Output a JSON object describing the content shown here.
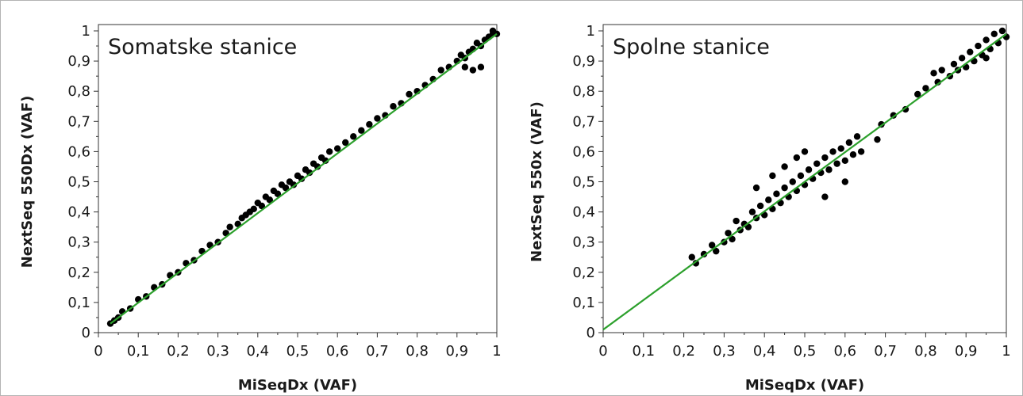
{
  "chart_data": [
    {
      "type": "scatter",
      "title": "Somatske stanice",
      "xlabel": "MiSeqDx (VAF)",
      "ylabel": "NextSeq 550Dx (VAF)",
      "xlim": [
        0,
        1
      ],
      "ylim": [
        0,
        1
      ],
      "x_ticks": [
        "0",
        "0,1",
        "0,2",
        "0,3",
        "0,4",
        "0,5",
        "0,6",
        "0,7",
        "0,8",
        "0,9",
        "1"
      ],
      "y_ticks": [
        "0",
        "0,1",
        "0,2",
        "0,3",
        "0,4",
        "0,5",
        "0,6",
        "0,7",
        "0,8",
        "0,9",
        "1"
      ],
      "grid": false,
      "point_color": "#000000",
      "line_color": "#2ca02c",
      "fit_line": {
        "x": [
          0.03,
          1.0
        ],
        "y": [
          0.03,
          0.99
        ]
      },
      "points": [
        [
          0.03,
          0.03
        ],
        [
          0.04,
          0.04
        ],
        [
          0.05,
          0.05
        ],
        [
          0.06,
          0.07
        ],
        [
          0.08,
          0.08
        ],
        [
          0.1,
          0.11
        ],
        [
          0.12,
          0.12
        ],
        [
          0.14,
          0.15
        ],
        [
          0.16,
          0.16
        ],
        [
          0.18,
          0.19
        ],
        [
          0.2,
          0.2
        ],
        [
          0.22,
          0.23
        ],
        [
          0.24,
          0.24
        ],
        [
          0.26,
          0.27
        ],
        [
          0.28,
          0.29
        ],
        [
          0.3,
          0.3
        ],
        [
          0.32,
          0.33
        ],
        [
          0.33,
          0.35
        ],
        [
          0.35,
          0.36
        ],
        [
          0.36,
          0.38
        ],
        [
          0.37,
          0.39
        ],
        [
          0.38,
          0.4
        ],
        [
          0.39,
          0.41
        ],
        [
          0.4,
          0.43
        ],
        [
          0.41,
          0.42
        ],
        [
          0.42,
          0.45
        ],
        [
          0.43,
          0.44
        ],
        [
          0.44,
          0.47
        ],
        [
          0.45,
          0.46
        ],
        [
          0.46,
          0.49
        ],
        [
          0.47,
          0.48
        ],
        [
          0.48,
          0.5
        ],
        [
          0.49,
          0.49
        ],
        [
          0.5,
          0.52
        ],
        [
          0.51,
          0.51
        ],
        [
          0.52,
          0.54
        ],
        [
          0.53,
          0.53
        ],
        [
          0.54,
          0.56
        ],
        [
          0.55,
          0.55
        ],
        [
          0.56,
          0.58
        ],
        [
          0.57,
          0.57
        ],
        [
          0.58,
          0.6
        ],
        [
          0.6,
          0.61
        ],
        [
          0.62,
          0.63
        ],
        [
          0.64,
          0.65
        ],
        [
          0.66,
          0.67
        ],
        [
          0.68,
          0.69
        ],
        [
          0.7,
          0.71
        ],
        [
          0.72,
          0.72
        ],
        [
          0.74,
          0.75
        ],
        [
          0.76,
          0.76
        ],
        [
          0.78,
          0.79
        ],
        [
          0.8,
          0.8
        ],
        [
          0.82,
          0.82
        ],
        [
          0.84,
          0.84
        ],
        [
          0.86,
          0.87
        ],
        [
          0.88,
          0.88
        ],
        [
          0.9,
          0.9
        ],
        [
          0.91,
          0.92
        ],
        [
          0.92,
          0.91
        ],
        [
          0.93,
          0.93
        ],
        [
          0.94,
          0.94
        ],
        [
          0.95,
          0.96
        ],
        [
          0.96,
          0.95
        ],
        [
          0.97,
          0.97
        ],
        [
          0.98,
          0.98
        ],
        [
          0.99,
          0.99
        ],
        [
          0.99,
          1.0
        ],
        [
          1.0,
          0.99
        ],
        [
          0.96,
          0.88
        ],
        [
          0.94,
          0.87
        ],
        [
          0.92,
          0.88
        ]
      ]
    },
    {
      "type": "scatter",
      "title": "Spolne stanice",
      "xlabel": "MiSeqDx (VAF)",
      "ylabel": "NextSeq 550x (VAF)",
      "xlim": [
        0,
        1
      ],
      "ylim": [
        0,
        1
      ],
      "x_ticks": [
        "0",
        "0,1",
        "0,2",
        "0,3",
        "0,4",
        "0,5",
        "0,6",
        "0,7",
        "0,8",
        "0,9",
        "1"
      ],
      "y_ticks": [
        "0",
        "0,1",
        "0,2",
        "0,3",
        "0,4",
        "0,5",
        "0,6",
        "0,7",
        "0,8",
        "0,9",
        "1"
      ],
      "grid": false,
      "point_color": "#000000",
      "line_color": "#2ca02c",
      "fit_line": {
        "x": [
          0.0,
          1.0
        ],
        "y": [
          0.01,
          0.99
        ]
      },
      "points": [
        [
          0.22,
          0.25
        ],
        [
          0.23,
          0.23
        ],
        [
          0.25,
          0.26
        ],
        [
          0.27,
          0.29
        ],
        [
          0.28,
          0.27
        ],
        [
          0.3,
          0.3
        ],
        [
          0.31,
          0.33
        ],
        [
          0.32,
          0.31
        ],
        [
          0.33,
          0.37
        ],
        [
          0.34,
          0.34
        ],
        [
          0.35,
          0.36
        ],
        [
          0.36,
          0.35
        ],
        [
          0.37,
          0.4
        ],
        [
          0.38,
          0.38
        ],
        [
          0.39,
          0.42
        ],
        [
          0.4,
          0.39
        ],
        [
          0.41,
          0.44
        ],
        [
          0.42,
          0.41
        ],
        [
          0.43,
          0.46
        ],
        [
          0.44,
          0.43
        ],
        [
          0.45,
          0.48
        ],
        [
          0.46,
          0.45
        ],
        [
          0.47,
          0.5
        ],
        [
          0.48,
          0.47
        ],
        [
          0.49,
          0.52
        ],
        [
          0.5,
          0.49
        ],
        [
          0.51,
          0.54
        ],
        [
          0.52,
          0.51
        ],
        [
          0.53,
          0.56
        ],
        [
          0.54,
          0.53
        ],
        [
          0.55,
          0.58
        ],
        [
          0.56,
          0.54
        ],
        [
          0.57,
          0.6
        ],
        [
          0.58,
          0.56
        ],
        [
          0.59,
          0.61
        ],
        [
          0.6,
          0.57
        ],
        [
          0.61,
          0.63
        ],
        [
          0.62,
          0.59
        ],
        [
          0.63,
          0.65
        ],
        [
          0.64,
          0.6
        ],
        [
          0.55,
          0.45
        ],
        [
          0.6,
          0.5
        ],
        [
          0.38,
          0.48
        ],
        [
          0.42,
          0.52
        ],
        [
          0.45,
          0.55
        ],
        [
          0.48,
          0.58
        ],
        [
          0.5,
          0.6
        ],
        [
          0.68,
          0.64
        ],
        [
          0.69,
          0.69
        ],
        [
          0.72,
          0.72
        ],
        [
          0.75,
          0.74
        ],
        [
          0.78,
          0.79
        ],
        [
          0.8,
          0.81
        ],
        [
          0.82,
          0.86
        ],
        [
          0.83,
          0.83
        ],
        [
          0.84,
          0.87
        ],
        [
          0.86,
          0.85
        ],
        [
          0.87,
          0.89
        ],
        [
          0.88,
          0.87
        ],
        [
          0.89,
          0.91
        ],
        [
          0.9,
          0.88
        ],
        [
          0.91,
          0.93
        ],
        [
          0.92,
          0.9
        ],
        [
          0.93,
          0.95
        ],
        [
          0.94,
          0.92
        ],
        [
          0.95,
          0.97
        ],
        [
          0.96,
          0.94
        ],
        [
          0.97,
          0.99
        ],
        [
          0.98,
          0.96
        ],
        [
          0.99,
          1.0
        ],
        [
          1.0,
          0.98
        ],
        [
          0.95,
          0.91
        ]
      ]
    }
  ]
}
